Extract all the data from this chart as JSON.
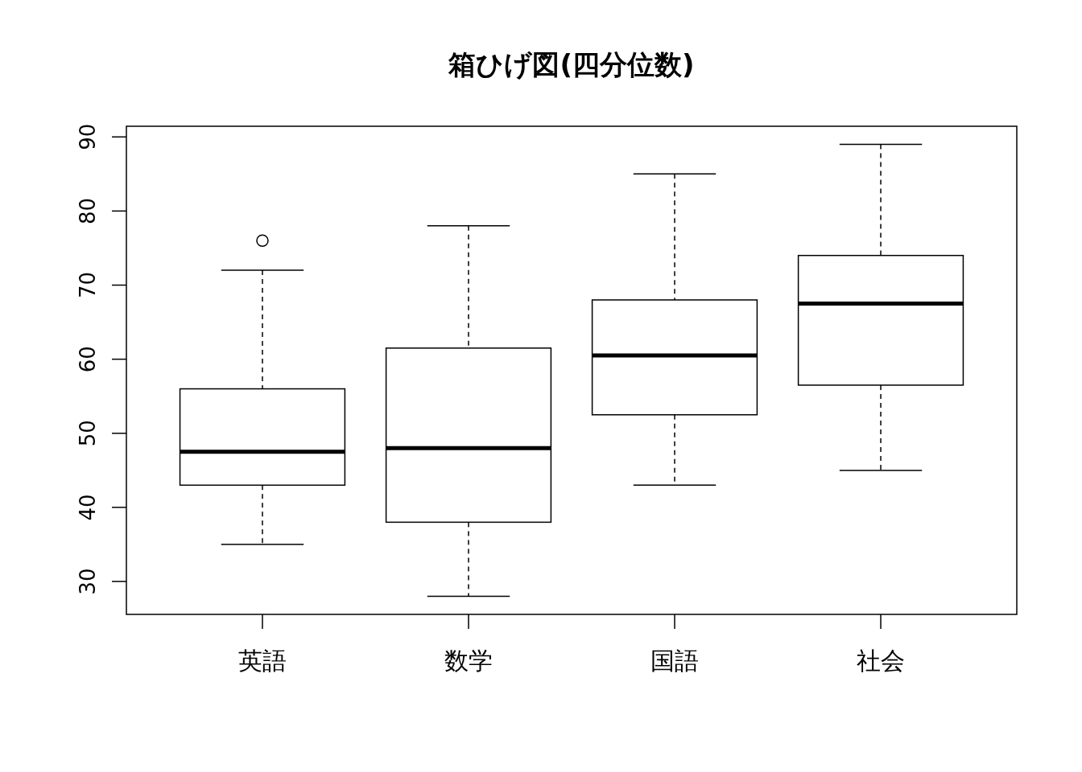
{
  "chart_data": {
    "type": "box",
    "title": "箱ひげ図(四分位数)",
    "categories": [
      "英語",
      "数学",
      "国語",
      "社会"
    ],
    "boxes": [
      {
        "low": 35,
        "q1": 43,
        "median": 47.5,
        "q3": 56,
        "high": 72,
        "outliers": [
          76
        ]
      },
      {
        "low": 28,
        "q1": 38,
        "median": 48,
        "q3": 61.5,
        "high": 78
      },
      {
        "low": 43,
        "q1": 52.5,
        "median": 60.5,
        "q3": 68,
        "high": 85
      },
      {
        "low": 45,
        "q1": 56.5,
        "median": 67.5,
        "q3": 74,
        "high": 89
      }
    ],
    "ylim": [
      25.56,
      91.44
    ],
    "yticks": [
      30,
      40,
      50,
      60,
      70,
      80,
      90
    ],
    "grid": false
  }
}
